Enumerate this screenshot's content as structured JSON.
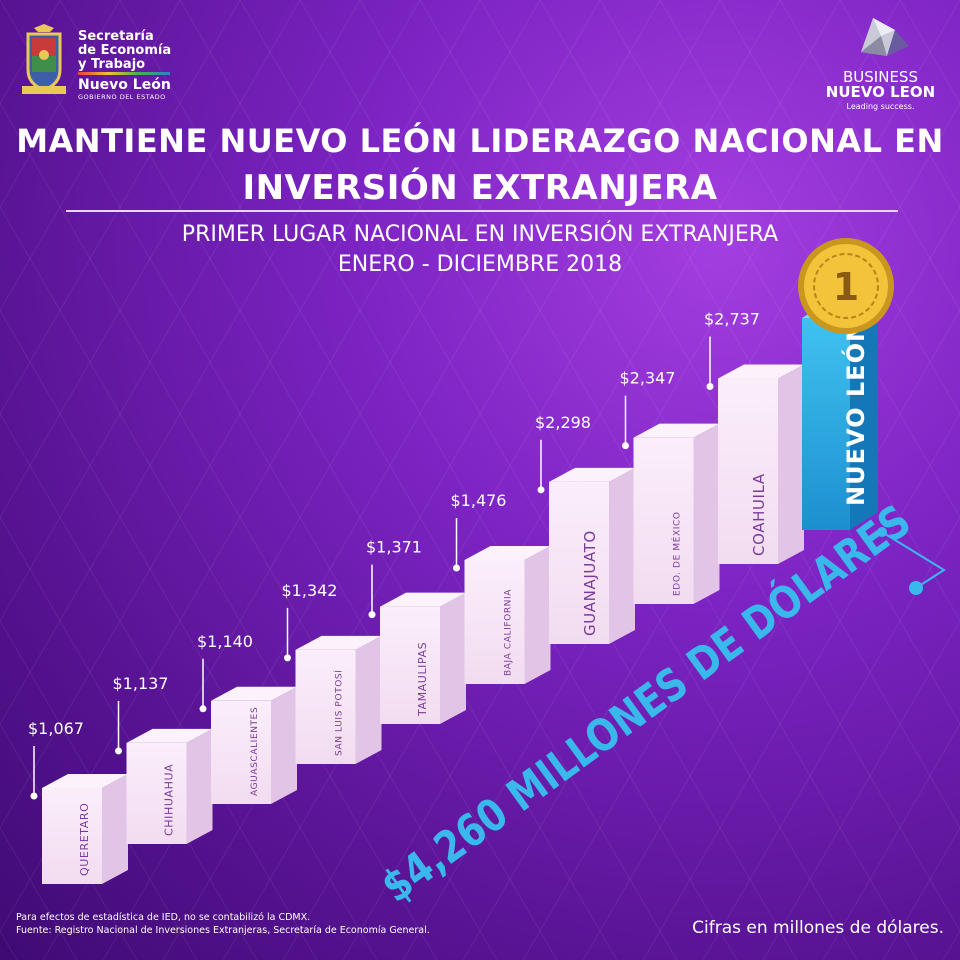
{
  "header": {
    "gov_logo_lines": [
      "Secretaría",
      "de Economía",
      "y Trabajo"
    ],
    "gov_logo_state": "Nuevo León",
    "gov_logo_sub": "GOBIERNO DEL ESTADO",
    "brand_line1": "BUSINESS",
    "brand_line2": "NUEVO LEON",
    "brand_tagline": "Leading success."
  },
  "title_line1": "MANTIENE NUEVO LEÓN LIDERAZGO NACIONAL EN",
  "title_line2": "INVERSIÓN EXTRANJERA",
  "subtitle_line1": "PRIMER LUGAR NACIONAL EN INVERSIÓN EXTRANJERA",
  "subtitle_line2": "ENERO - DICIEMBRE 2018",
  "chart_data": {
    "type": "bar",
    "categories": [
      "QUERETARO",
      "CHIHUAHUA",
      "AGUASCALIENTES",
      "SAN LUIS POTOSÍ",
      "TAMAULIPAS",
      "BAJA CALIFORNIA",
      "GUANAJUATO",
      "EDO. DE MÉXICO",
      "COAHUILA"
    ],
    "values": [
      1067,
      1137,
      1140,
      1342,
      1371,
      1476,
      2298,
      2347,
      2737
    ],
    "value_labels": [
      "$1,067",
      "$1,137",
      "$1,140",
      "$1,342",
      "$1,371",
      "$1,476",
      "$2,298",
      "$2,347",
      "$2,737"
    ],
    "highlight": {
      "category": "NUEVO LEÓN",
      "value": 4260,
      "value_label": "$4,260 MILLONES DE DÓLARES",
      "rank_badge": "1",
      "color": "#2bb5e8"
    },
    "colors": {
      "bar_front": "#f2dcf0",
      "bar_side": "#e2c4e6",
      "bar_top": "#fbf2fb",
      "label_text": "#7a3a9a",
      "accent": "#3ab8ec"
    }
  },
  "footnote_line1": "Para efectos de estadística de IED, no se contabilizó la CDMX.",
  "footnote_line2": "Fuente: Registro Nacional de Inversiones Extranjeras, Secretaría de Economía General.",
  "units_note": "Cifras en millones de dólares."
}
